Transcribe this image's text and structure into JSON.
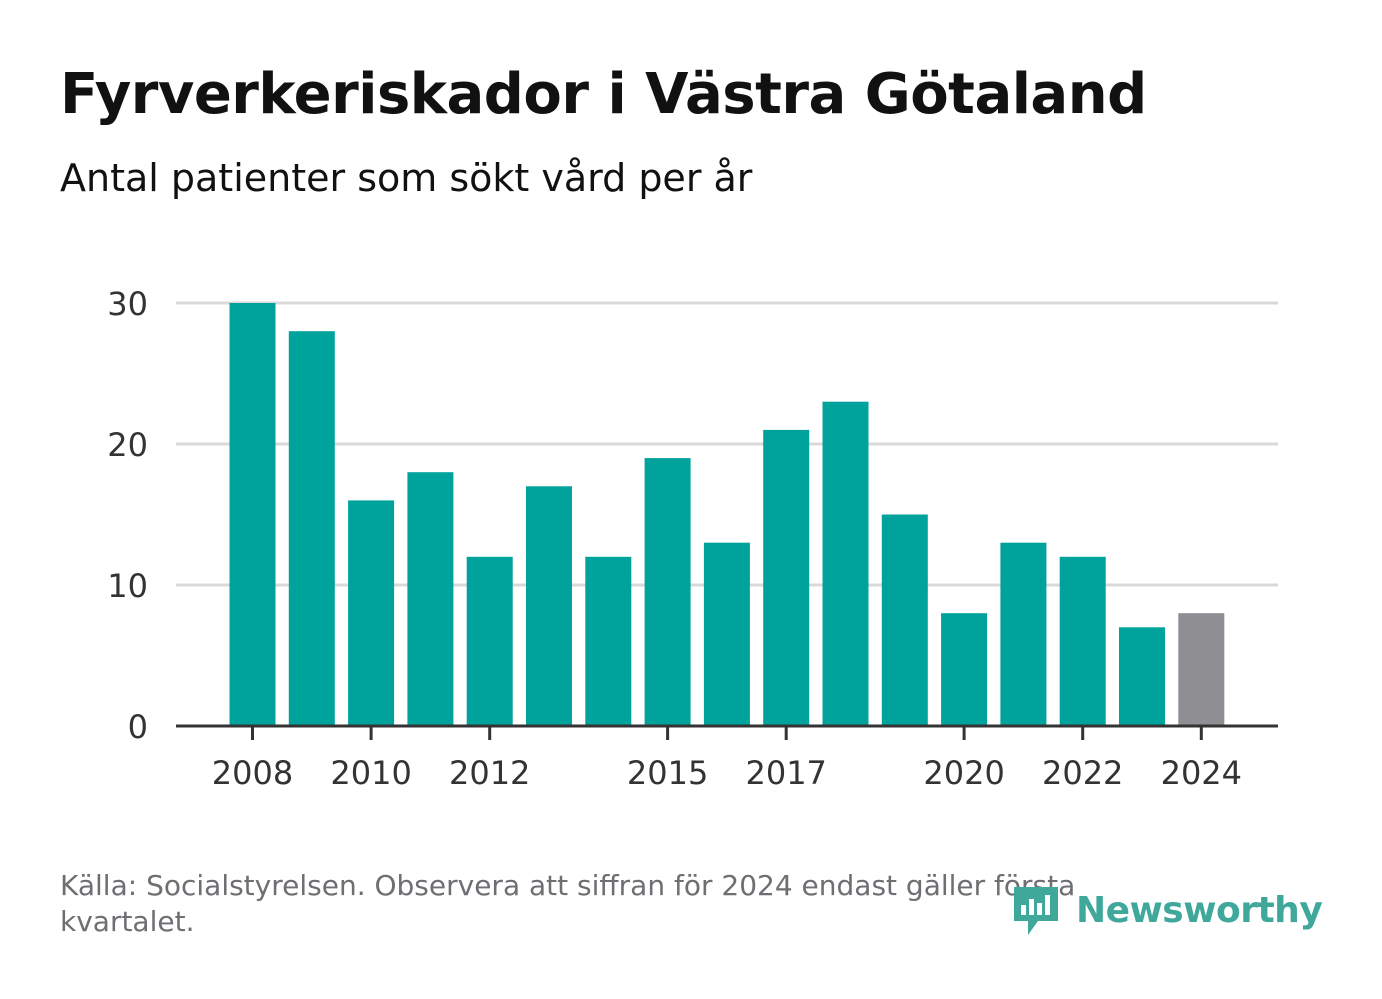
{
  "header": {
    "title": "Fyrverkeriskador i Västra Götaland",
    "subtitle": "Antal patienter som sökt vård per år"
  },
  "footer": {
    "source": "Källa: Socialstyrelsen. Observera att siffran för 2024 endast gäller första kvartalet.",
    "brand": "Newsworthy"
  },
  "colors": {
    "bar": "#00a39b",
    "bar_partial": "#8e8e93",
    "grid": "#d9d9d9",
    "axis": "#333333",
    "brand": "#3fa89b"
  },
  "icons": {
    "brand_logo": "newsworthy-logo-icon"
  },
  "chart_data": {
    "type": "bar",
    "title": "Fyrverkeriskador i Västra Götaland",
    "subtitle": "Antal patienter som sökt vård per år",
    "categories": [
      "2008",
      "2009",
      "2010",
      "2011",
      "2012",
      "2013",
      "2014",
      "2015",
      "2016",
      "2017",
      "2018",
      "2019",
      "2020",
      "2021",
      "2022",
      "2023",
      "2024"
    ],
    "values": [
      30,
      28,
      16,
      18,
      12,
      17,
      12,
      19,
      13,
      21,
      23,
      15,
      8,
      13,
      12,
      7,
      8
    ],
    "highlighted_categories": [
      "2024"
    ],
    "x_tick_labels": [
      "2008",
      "2010",
      "2012",
      "2015",
      "2017",
      "2020",
      "2022",
      "2024"
    ],
    "y_ticks": [
      0,
      10,
      20,
      30
    ],
    "ylim": [
      0,
      30
    ],
    "xlabel": "",
    "ylabel": "",
    "grid": true,
    "legend": "none"
  }
}
